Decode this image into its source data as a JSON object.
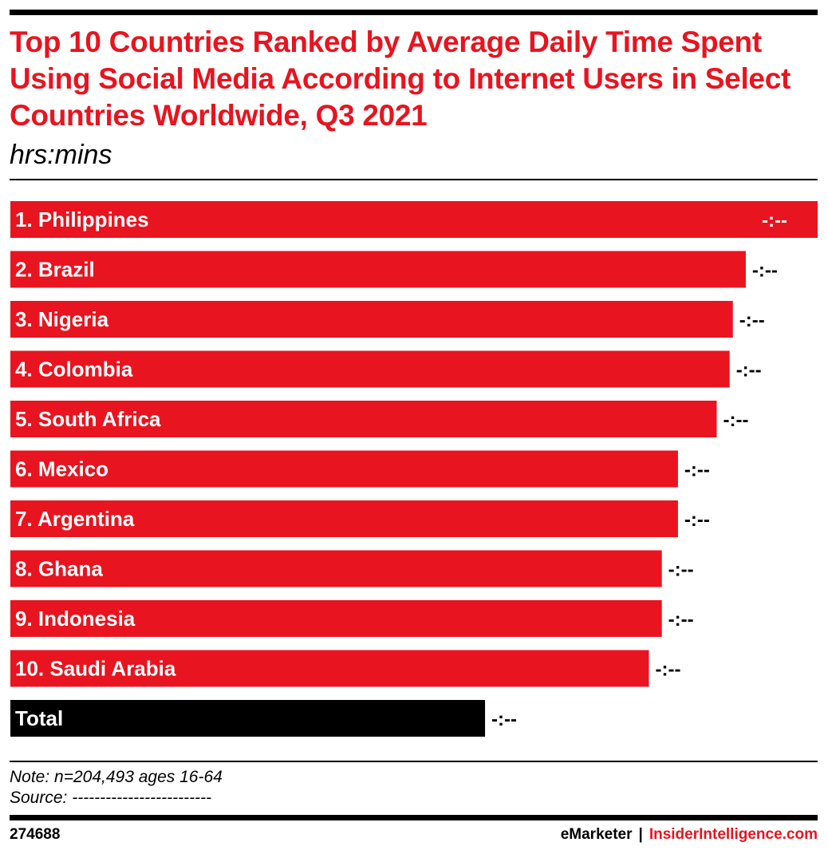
{
  "header": {
    "title": "Top 10 Countries Ranked by Average Daily Time Spent Using Social Media According to Internet Users in Select Countries Worldwide, Q3 2021",
    "subtitle": "hrs:mins"
  },
  "colors": {
    "bar": "#e8141f",
    "total_bar": "#000000",
    "title": "#e8141f"
  },
  "chart_data": {
    "type": "bar",
    "orientation": "horizontal",
    "title": "Top 10 Countries Ranked by Average Daily Time Spent Using Social Media According to Internet Users in Select Countries Worldwide, Q3 2021",
    "unit": "hrs:mins",
    "categories": [
      "1. Philippines",
      "2. Brazil",
      "3. Nigeria",
      "4. Colombia",
      "5. South Africa",
      "6. Mexico",
      "7. Argentina",
      "8. Ghana",
      "9. Indonesia",
      "10. Saudi Arabia",
      "Total"
    ],
    "value_labels": [
      "-:--",
      "-:--",
      "-:--",
      "-:--",
      "-:--",
      "-:--",
      "-:--",
      "-:--",
      "-:--",
      "-:--",
      "-:--"
    ],
    "relative_lengths": [
      1.0,
      0.911,
      0.895,
      0.891,
      0.875,
      0.827,
      0.827,
      0.807,
      0.807,
      0.791,
      0.588
    ],
    "highlight_last": true,
    "grid": false,
    "legend": "none"
  },
  "footer": {
    "note": "Note: n=204,493 ages 16-64",
    "source": "Source: -------------------------",
    "chart_id": "274688",
    "brand_left": "eMarketer",
    "brand_sep": "|",
    "brand_right": "InsiderIntelligence.com"
  }
}
